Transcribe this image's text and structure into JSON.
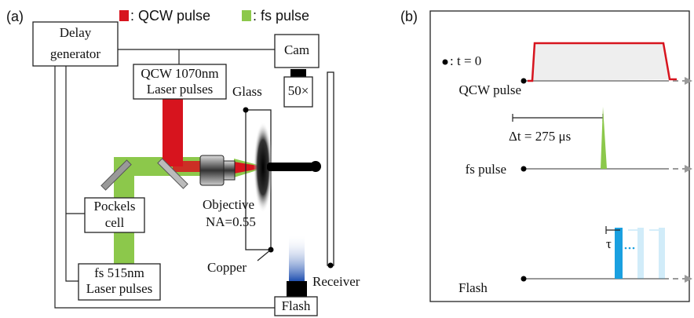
{
  "panel_a": {
    "label": "(a)",
    "legend": {
      "qcw": ": QCW pulse",
      "fs": ": fs pulse"
    },
    "delay_generator": [
      "Delay",
      "generator"
    ],
    "cam": "Cam",
    "magnification": "50×",
    "qcw_laser": [
      "QCW 1070nm",
      "Laser pulses"
    ],
    "glass": "Glass",
    "pockels_cell": [
      "Pockels",
      "cell"
    ],
    "objective": [
      "Objective",
      "NA=0.55"
    ],
    "copper": "Copper",
    "fs_laser": [
      "fs 515nm",
      "Laser pulses"
    ],
    "receiver": "Receiver",
    "flash": "Flash"
  },
  "panel_b": {
    "label": "(b)",
    "t0_legend": ": t = 0",
    "qcw_pulse": "QCW pulse",
    "delay": "Δt = 275 μs",
    "fs_pulse": "fs pulse",
    "tau": "τ",
    "flash": "Flash"
  }
}
